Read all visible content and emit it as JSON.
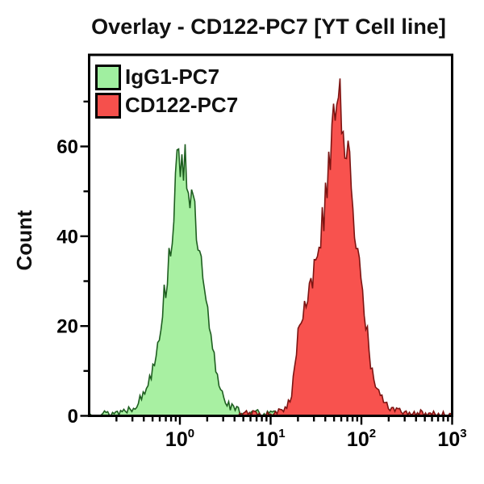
{
  "chart_data": {
    "type": "area",
    "subtype": "flow-cytometry-histogram-overlay",
    "title": "Overlay - CD122-PC7 [YT Cell line]",
    "xlabel": "",
    "ylabel": "Count",
    "x_scale": "log10",
    "x_range": [
      0.1,
      1000
    ],
    "y_range": [
      0,
      80.4
    ],
    "grid": "off",
    "axis_color": "#000000",
    "text_color": "#000000",
    "y_major_ticks": [
      0,
      20,
      40,
      60
    ],
    "y_minor_ticks": [
      10,
      30,
      50,
      70
    ],
    "x_major_ticks": [
      {
        "value": 1,
        "label_base": "10",
        "label_exp": "0"
      },
      {
        "value": 10,
        "label_base": "10",
        "label_exp": "1"
      },
      {
        "value": 100,
        "label_base": "10",
        "label_exp": "2"
      },
      {
        "value": 1000,
        "label_base": "10",
        "label_exp": "3"
      }
    ],
    "x_minor_multipliers": [
      2,
      3,
      4,
      5,
      6,
      7,
      8,
      9
    ],
    "legend": {
      "position": "top-left",
      "entries": [
        {
          "label": "IgG1-PC7",
          "swatch_fill": "#A0EFA0",
          "swatch_border": "#000000"
        },
        {
          "label": "CD122-PC7",
          "swatch_fill": "#F5504C",
          "swatch_border": "#000000"
        }
      ]
    },
    "series": [
      {
        "name": "IgG1-PC7",
        "fill": "#A8F0A2",
        "stroke": "#1E5E20",
        "peak": {
          "x": 1.05,
          "count": 63
        },
        "noise_seed": 13,
        "noise_base": 0.8,
        "noise_factor": 0.1,
        "points": [
          [
            0.1,
            0.3
          ],
          [
            0.16,
            0.5
          ],
          [
            0.22,
            0.9
          ],
          [
            0.3,
            1.8
          ],
          [
            0.38,
            4
          ],
          [
            0.46,
            8
          ],
          [
            0.54,
            14
          ],
          [
            0.63,
            22
          ],
          [
            0.74,
            33
          ],
          [
            0.85,
            45
          ],
          [
            0.95,
            55
          ],
          [
            1.05,
            60
          ],
          [
            1.17,
            56
          ],
          [
            1.35,
            48
          ],
          [
            1.58,
            38
          ],
          [
            1.86,
            27
          ],
          [
            2.19,
            17
          ],
          [
            2.57,
            9
          ],
          [
            3.0,
            4.5
          ],
          [
            3.6,
            2
          ],
          [
            4.8,
            0.8
          ],
          [
            8,
            0.5
          ],
          [
            14,
            0.35
          ],
          [
            25,
            0.2
          ],
          [
            40,
            0.1
          ]
        ]
      },
      {
        "name": "CD122-PC7",
        "fill": "#F8524E",
        "stroke": "#7C1412",
        "peak": {
          "x": 54,
          "count": 76
        },
        "noise_seed": 29,
        "noise_base": 0.8,
        "noise_factor": 0.1,
        "points": [
          [
            3,
            0.15
          ],
          [
            4,
            0.3
          ],
          [
            8,
            0.5
          ],
          [
            12,
            0.8
          ],
          [
            15,
            1.5
          ],
          [
            17.4,
            6
          ],
          [
            19,
            15
          ],
          [
            21.4,
            22
          ],
          [
            26.3,
            28
          ],
          [
            33,
            36
          ],
          [
            40,
            47
          ],
          [
            45.7,
            58
          ],
          [
            51,
            67
          ],
          [
            55.6,
            72
          ],
          [
            60,
            67
          ],
          [
            67.6,
            60
          ],
          [
            75.9,
            52
          ],
          [
            89,
            40
          ],
          [
            105,
            26
          ],
          [
            123,
            13
          ],
          [
            145,
            6
          ],
          [
            182,
            2.5
          ],
          [
            251,
            1
          ],
          [
            400,
            0.6
          ],
          [
            700,
            0.4
          ],
          [
            1000,
            0.25
          ]
        ]
      }
    ]
  }
}
